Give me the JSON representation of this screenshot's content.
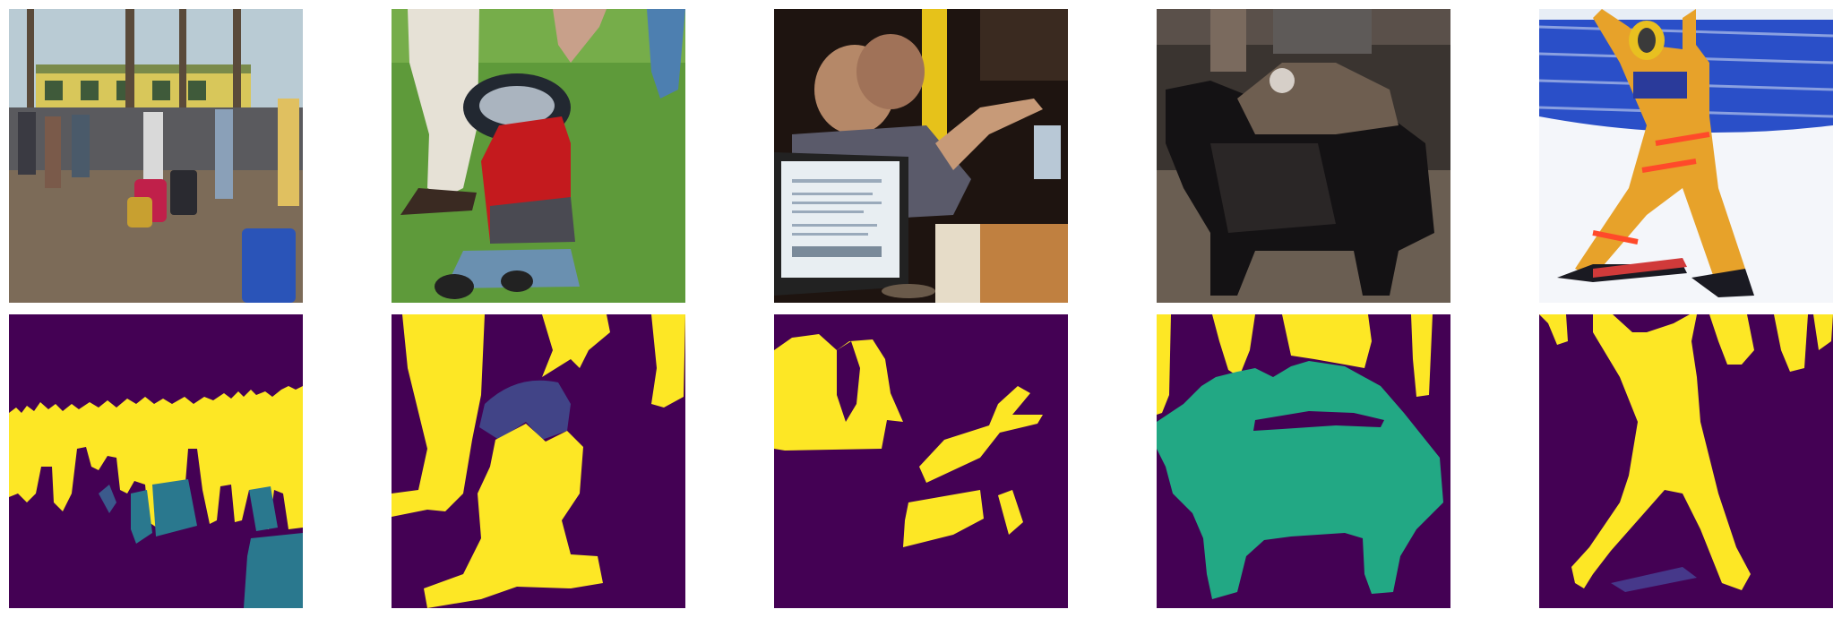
{
  "figure": {
    "palette": {
      "background": "#440154",
      "person": "#fde725",
      "frisbee": "#414487",
      "suitcase": "#2a788e",
      "handbag": "#3b5a8c",
      "animal": "#22a884",
      "skis": "#46388a"
    },
    "photos": [
      {
        "subject": "crowd-with-luggage-icon"
      },
      {
        "subject": "child-with-frisbee-icon"
      },
      {
        "subject": "men-at-laptops-icon"
      },
      {
        "subject": "cat-on-dog-icon"
      },
      {
        "subject": "snowboarder-icon"
      }
    ]
  }
}
